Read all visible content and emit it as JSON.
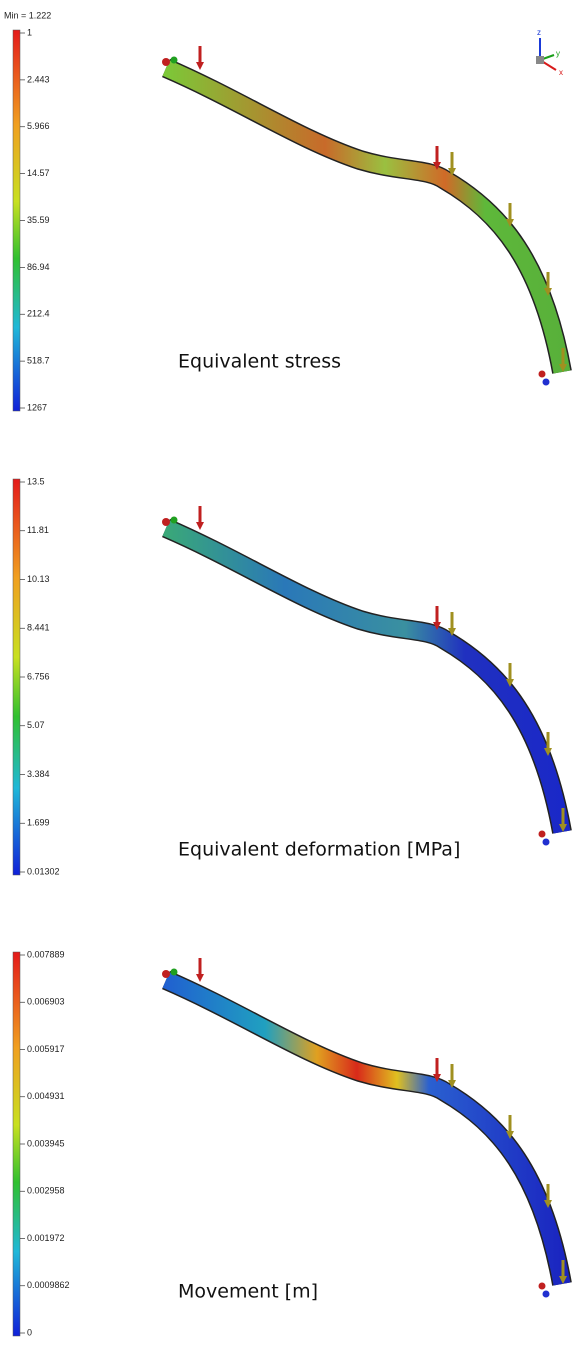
{
  "panels": [
    {
      "min_label": "Min = 1.222",
      "legend": [
        "1",
        "2.443",
        "5.966",
        "14.57",
        "35.59",
        "86.94",
        "212.4",
        "518.7",
        "1267"
      ],
      "caption": "Equivalent stress"
    },
    {
      "legend": [
        "13.5",
        "11.81",
        "10.13",
        "8.441",
        "6.756",
        "5.07",
        "3.384",
        "1.699",
        "0.01302"
      ],
      "caption": "Equivalent deformation [MPa]"
    },
    {
      "legend": [
        "0.007889",
        "0.006903",
        "0.005917",
        "0.004931",
        "0.003945",
        "0.002958",
        "0.001972",
        "0.0009862",
        "0"
      ],
      "caption": "Movement [m]"
    }
  ],
  "triad": {
    "z": "z",
    "y": "y",
    "x": "x"
  }
}
